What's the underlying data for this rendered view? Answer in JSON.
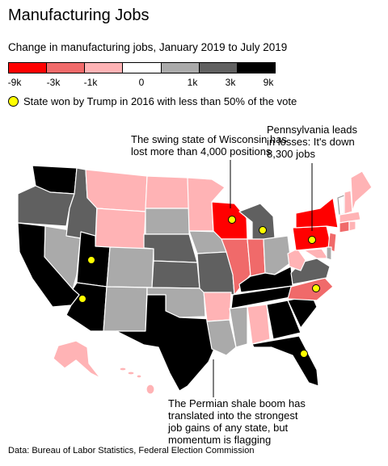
{
  "title": "Manufacturing Jobs",
  "subtitle": "Change in manufacturing jobs, January 2019 to July 2019",
  "legend": {
    "colors": [
      "#ff0000",
      "#f06a6a",
      "#ffb3b5",
      "#ffffff",
      "#aaaaaa",
      "#606060",
      "#000000"
    ],
    "labels": [
      "-9k",
      "-3k",
      "-1k",
      "0",
      "1k",
      "3k",
      "9k"
    ]
  },
  "trump_legend": "State won by Trump in 2016 with less than 50% of the vote",
  "annotations": {
    "wisconsin": [
      "The swing state of Wisconsin has",
      "lost more than 4,000 positions"
    ],
    "pennsylvania": [
      "Pennsylvania leads",
      "in losses: It's down",
      "8,300 jobs"
    ],
    "texas": [
      "The Permian shale boom has",
      "translated into the strongest",
      "job gains of any state, but",
      "momentum is flagging"
    ]
  },
  "source": "Data: Bureau of Labor Statistics, Federal Election Commission",
  "map_colors": {
    "WA": "#000000",
    "OR": "#606060",
    "ID": "#606060",
    "MT": "#ffb3b5",
    "WY": "#ffb3b5",
    "ND": "#ffb3b5",
    "SD": "#aaaaaa",
    "NE": "#606060",
    "KS": "#606060",
    "OK": "#aaaaaa",
    "TX": "#000000",
    "CA": "#000000",
    "NV": "#aaaaaa",
    "UT": "#000000",
    "AZ": "#000000",
    "CO": "#aaaaaa",
    "NM": "#aaaaaa",
    "MN": "#ffb3b5",
    "IA": "#aaaaaa",
    "MO": "#606060",
    "AR": "#ffb3b5",
    "LA": "#aaaaaa",
    "WI": "#ff0000",
    "IL": "#f06a6a",
    "MI": "#606060",
    "IN": "#f06a6a",
    "OH": "#aaaaaa",
    "KY": "#000000",
    "TN": "#000000",
    "MS": "#aaaaaa",
    "AL": "#ffb3b5",
    "GA": "#000000",
    "FL": "#000000",
    "SC": "#000000",
    "NC": "#f06a6a",
    "VA": "#606060",
    "WV": "#ffb3b5",
    "PA": "#ff0000",
    "NY": "#ff0000",
    "VT": "#ffffff",
    "NH": "#ffb3b5",
    "ME": "#ffb3b5",
    "MA": "#ffb3b5",
    "CT": "#f06a6a",
    "RI": "#ffb3b5",
    "NJ": "#f06a6a",
    "DE": "#aaaaaa",
    "MD": "#ffb3b5",
    "AK": "#ffb3b5",
    "HI": "#ffb3b5"
  },
  "trump_states": [
    "WI",
    "MI",
    "PA",
    "NC",
    "FL",
    "UT",
    "AZ"
  ]
}
